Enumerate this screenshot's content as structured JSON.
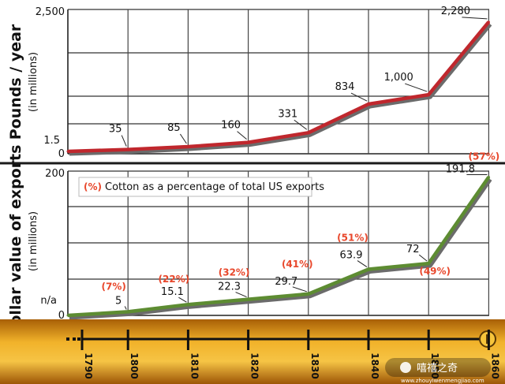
{
  "chart_data": [
    {
      "type": "line",
      "ylabel": "Pounds / year",
      "ylabel_sub": "(in millions)",
      "x": [
        1790,
        1800,
        1810,
        1820,
        1830,
        1840,
        1850,
        1860
      ],
      "ytick_labels": [
        "2,500",
        "1.5",
        "0"
      ],
      "series": [
        {
          "values": [
            1.5,
            35,
            85,
            160,
            331,
            834,
            1000,
            2280
          ],
          "labels": [
            "",
            "35",
            "85",
            "160",
            "331",
            "834",
            "1,000",
            "2,280"
          ],
          "color": "#c0272d"
        }
      ]
    },
    {
      "type": "line",
      "ylabel": "Dollar value of exports",
      "ylabel_sub": "(in millions)",
      "x": [
        1790,
        1800,
        1810,
        1820,
        1830,
        1840,
        1850,
        1860
      ],
      "ytick_labels": [
        "200",
        "n/a",
        "0"
      ],
      "legend": {
        "marker": "(%)",
        "text": "Cotton as a percentage of total US exports"
      },
      "series": [
        {
          "values": [
            0,
            5,
            15.1,
            22.3,
            29.7,
            63.9,
            72,
            191.8
          ],
          "labels": [
            "",
            "5",
            "15.1",
            "22.3",
            "29.7",
            "63.9",
            "72",
            "191.8"
          ],
          "pct_labels": [
            "",
            "(7%)",
            "(22%)",
            "(32%)",
            "(41%)",
            "(51%)",
            "(49%)",
            "(57%)"
          ],
          "color": "#5d8c32"
        }
      ]
    }
  ],
  "timeline": {
    "years": [
      "1790",
      "1800",
      "1810",
      "1820",
      "1830",
      "1840",
      "1850",
      "1860"
    ]
  },
  "watermark": {
    "text": "嘻禧之奇",
    "url": "www.zhouyiwenmengjiao.com"
  },
  "colors": {
    "bar_gold": "#e8a21c",
    "bar_dark": "#a05a08",
    "red_line": "#c0272d",
    "green_line": "#5d8c32",
    "pct_orange": "#e8472b"
  }
}
